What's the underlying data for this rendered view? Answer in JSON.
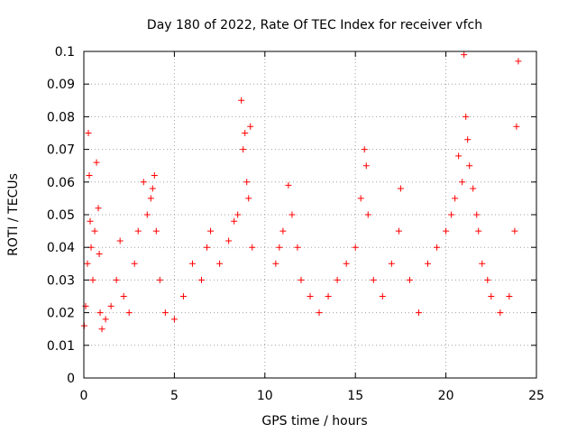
{
  "chart_data": {
    "type": "scatter",
    "title": "Day 180 of 2022, Rate Of TEC Index for receiver vfch",
    "xlabel": "GPS time / hours",
    "ylabel": "ROTI / TECUs",
    "xlim": [
      0,
      25
    ],
    "ylim": [
      0,
      0.1
    ],
    "xticks": [
      0,
      5,
      10,
      15,
      20,
      25
    ],
    "xtick_labels": [
      "0",
      "5",
      "10",
      "15",
      "20",
      "25"
    ],
    "yticks": [
      0,
      0.01,
      0.02,
      0.03,
      0.04,
      0.05,
      0.06,
      0.07,
      0.08,
      0.09,
      0.1
    ],
    "ytick_labels": [
      "0",
      "0.01",
      "0.02",
      "0.03",
      "0.04",
      "0.05",
      "0.06",
      "0.07",
      "0.08",
      "0.09",
      "0.1"
    ],
    "grid": true,
    "marker": "plus",
    "series": [
      {
        "name": "ROTI",
        "color": "#ff0000",
        "x": [
          0.02,
          0.1,
          0.2,
          0.25,
          0.3,
          0.35,
          0.4,
          0.5,
          0.6,
          0.7,
          0.8,
          0.85,
          0.9,
          1.0,
          1.2,
          1.5,
          1.8,
          2.0,
          2.2,
          2.5,
          2.8,
          3.0,
          3.3,
          3.5,
          3.7,
          3.8,
          3.9,
          4.0,
          4.2,
          4.5,
          5.0,
          5.5,
          6.0,
          6.5,
          6.8,
          7.0,
          7.5,
          8.0,
          8.3,
          8.5,
          8.7,
          8.8,
          8.9,
          9.0,
          9.1,
          9.2,
          9.3,
          10.6,
          10.8,
          11.0,
          11.3,
          11.5,
          11.8,
          12.0,
          12.5,
          13.0,
          13.5,
          14.0,
          14.5,
          15.0,
          15.3,
          15.5,
          15.6,
          15.7,
          16.0,
          16.5,
          17.0,
          17.4,
          17.5,
          18.0,
          18.5,
          19.0,
          19.5,
          20.0,
          20.3,
          20.5,
          20.7,
          20.9,
          21.0,
          21.1,
          21.2,
          21.3,
          21.5,
          21.7,
          21.8,
          22.0,
          22.3,
          22.5,
          23.0,
          23.5,
          23.8,
          23.9,
          24.0
        ],
        "y": [
          0.016,
          0.022,
          0.035,
          0.075,
          0.062,
          0.048,
          0.04,
          0.03,
          0.045,
          0.066,
          0.052,
          0.038,
          0.02,
          0.015,
          0.018,
          0.022,
          0.03,
          0.042,
          0.025,
          0.02,
          0.035,
          0.045,
          0.06,
          0.05,
          0.055,
          0.058,
          0.062,
          0.045,
          0.03,
          0.02,
          0.018,
          0.025,
          0.035,
          0.03,
          0.04,
          0.045,
          0.035,
          0.042,
          0.048,
          0.05,
          0.085,
          0.07,
          0.075,
          0.06,
          0.055,
          0.077,
          0.04,
          0.035,
          0.04,
          0.045,
          0.059,
          0.05,
          0.04,
          0.03,
          0.025,
          0.02,
          0.025,
          0.03,
          0.035,
          0.04,
          0.055,
          0.07,
          0.065,
          0.05,
          0.03,
          0.025,
          0.035,
          0.045,
          0.058,
          0.03,
          0.02,
          0.035,
          0.04,
          0.045,
          0.05,
          0.055,
          0.068,
          0.06,
          0.099,
          0.08,
          0.073,
          0.065,
          0.058,
          0.05,
          0.045,
          0.035,
          0.03,
          0.025,
          0.02,
          0.025,
          0.045,
          0.077,
          0.097
        ]
      }
    ]
  }
}
